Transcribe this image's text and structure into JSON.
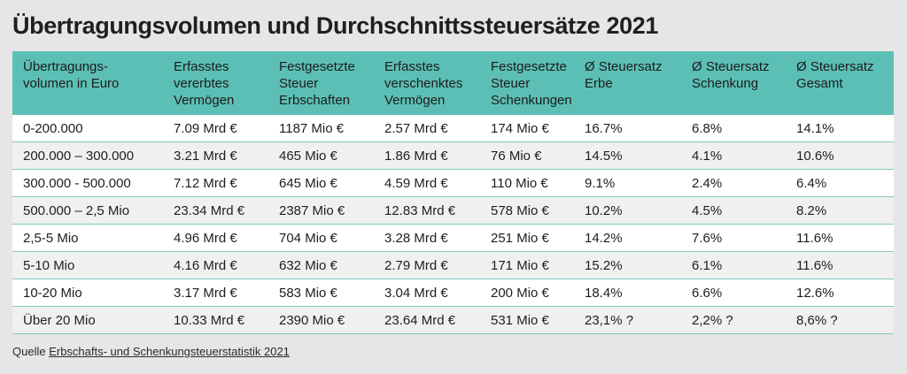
{
  "title": "Übertragungsvolumen und Durchschnittssteuersätze 2021",
  "table": {
    "headers": [
      "Übertragungs-\nvolumen in Euro",
      "Erfasstes vererbtes Vermögen",
      "Festgesetzte Steuer Erbschaften",
      "Erfasstes verschenktes Vermögen",
      "Festgesetzte Steuer Schenkungen",
      "Ø Steuersatz Erbe",
      "Ø Steuersatz Schenkung",
      "Ø Steuersatz Gesamt"
    ],
    "rows": [
      [
        "0-200.000",
        "7.09 Mrd €",
        "1187 Mio €",
        "2.57 Mrd €",
        "174 Mio €",
        "16.7%",
        "6.8%",
        "14.1%"
      ],
      [
        "200.000 – 300.000",
        "3.21 Mrd €",
        "465 Mio €",
        "1.86 Mrd €",
        "76 Mio €",
        "14.5%",
        "4.1%",
        "10.6%"
      ],
      [
        "300.000 - 500.000",
        "7.12 Mrd €",
        "645 Mio €",
        "4.59 Mrd €",
        "110 Mio €",
        "9.1%",
        "2.4%",
        "6.4%"
      ],
      [
        "500.000 – 2,5 Mio",
        "23.34 Mrd €",
        "2387 Mio €",
        "12.83 Mrd €",
        "578 Mio €",
        "10.2%",
        "4.5%",
        "8.2%"
      ],
      [
        "2,5-5 Mio",
        "4.96 Mrd €",
        "704 Mio €",
        "3.28 Mrd €",
        "251 Mio €",
        "14.2%",
        "7.6%",
        "11.6%"
      ],
      [
        "5-10 Mio",
        "4.16 Mrd €",
        "632 Mio €",
        "2.79 Mrd €",
        "171 Mio €",
        "15.2%",
        "6.1%",
        "11.6%"
      ],
      [
        "10-20 Mio",
        "3.17 Mrd €",
        "583 Mio €",
        "3.04 Mrd €",
        "200 Mio €",
        "18.4%",
        "6.6%",
        "12.6%"
      ],
      [
        "Über 20 Mio",
        "10.33 Mrd €",
        "2390 Mio €",
        "23.64 Mrd €",
        "531 Mio €",
        "23,1% ?",
        "2,2% ?",
        "8,6% ?"
      ]
    ]
  },
  "source": {
    "prefix": "Quelle",
    "link_text": "Erbschafts- und Schenkungsteuerstatistik 2021"
  },
  "colors": {
    "header_bg": "#5cbfb5",
    "row_odd": "#ffffff",
    "row_even": "#f0f0f0",
    "page_bg": "#e6e6e6"
  }
}
